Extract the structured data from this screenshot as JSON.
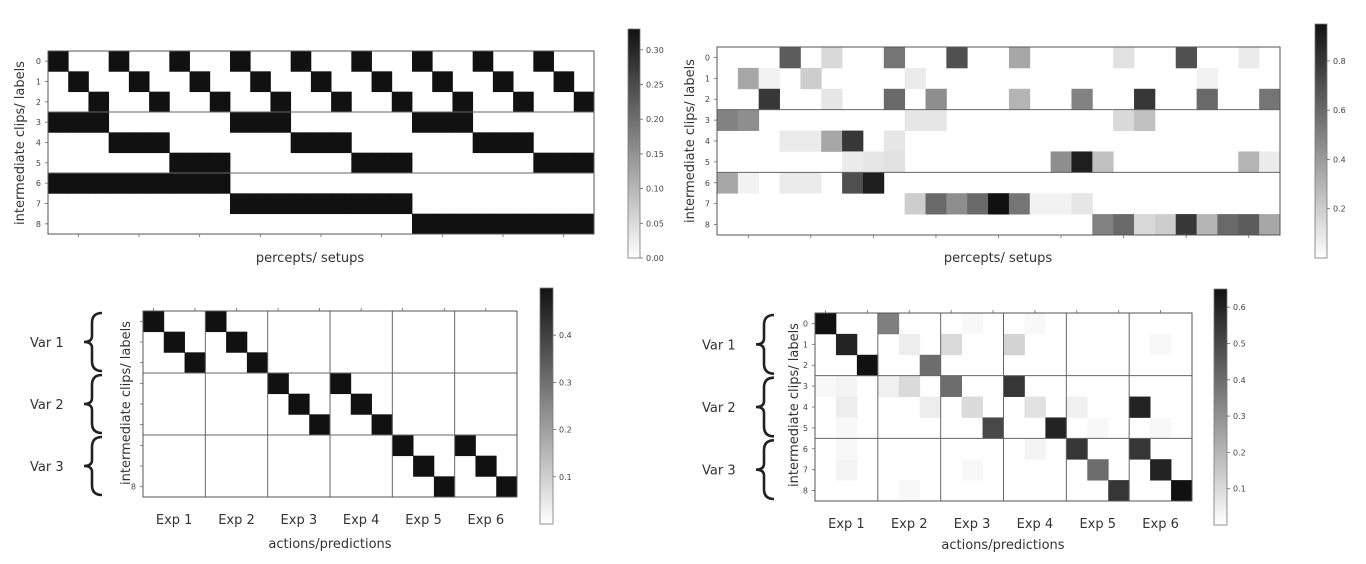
{
  "colors": {
    "dark": "#111111",
    "light": "#ffffff",
    "frame": "#555555",
    "sep": "#666666"
  },
  "chart_data": [
    {
      "id": "top-left",
      "type": "heatmap",
      "title": "",
      "xlabel": "percepts/ setups",
      "ylabel": "intermediate clips/ labels",
      "rows": 9,
      "cols": 27,
      "yticks": [
        "0",
        "1",
        "2",
        "3",
        "4",
        "5",
        "6",
        "7",
        "8"
      ],
      "vmax": 0.33,
      "colorbar": {
        "min": 0.0,
        "max": 0.33,
        "ticks": [
          0.0,
          0.05,
          0.1,
          0.15,
          0.2,
          0.25,
          0.3
        ],
        "labels": [
          "0.00",
          "0.05",
          "0.10",
          "0.15",
          "0.20",
          "0.25",
          "0.30"
        ]
      },
      "row_separators": [
        3,
        6
      ],
      "col_separators": [],
      "values": [
        [
          0.333,
          0,
          0,
          0.333,
          0,
          0,
          0.333,
          0,
          0,
          0.333,
          0,
          0,
          0.333,
          0,
          0,
          0.333,
          0,
          0,
          0.333,
          0,
          0,
          0.333,
          0,
          0,
          0.333,
          0,
          0
        ],
        [
          0,
          0.333,
          0,
          0,
          0.333,
          0,
          0,
          0.333,
          0,
          0,
          0.333,
          0,
          0,
          0.333,
          0,
          0,
          0.333,
          0,
          0,
          0.333,
          0,
          0,
          0.333,
          0,
          0,
          0.333,
          0
        ],
        [
          0,
          0,
          0.333,
          0,
          0,
          0.333,
          0,
          0,
          0.333,
          0,
          0,
          0.333,
          0,
          0,
          0.333,
          0,
          0,
          0.333,
          0,
          0,
          0.333,
          0,
          0,
          0.333,
          0,
          0,
          0.333
        ],
        [
          0.333,
          0.333,
          0.333,
          0,
          0,
          0,
          0,
          0,
          0,
          0.333,
          0.333,
          0.333,
          0,
          0,
          0,
          0,
          0,
          0,
          0.333,
          0.333,
          0.333,
          0,
          0,
          0,
          0,
          0,
          0
        ],
        [
          0,
          0,
          0,
          0.333,
          0.333,
          0.333,
          0,
          0,
          0,
          0,
          0,
          0,
          0.333,
          0.333,
          0.333,
          0,
          0,
          0,
          0,
          0,
          0,
          0.333,
          0.333,
          0.333,
          0,
          0,
          0
        ],
        [
          0,
          0,
          0,
          0,
          0,
          0,
          0.333,
          0.333,
          0.333,
          0,
          0,
          0,
          0,
          0,
          0,
          0.333,
          0.333,
          0.333,
          0,
          0,
          0,
          0,
          0,
          0,
          0.333,
          0.333,
          0.333
        ],
        [
          0.333,
          0.333,
          0.333,
          0.333,
          0.333,
          0.333,
          0.333,
          0.333,
          0.333,
          0,
          0,
          0,
          0,
          0,
          0,
          0,
          0,
          0,
          0,
          0,
          0,
          0,
          0,
          0,
          0,
          0,
          0
        ],
        [
          0,
          0,
          0,
          0,
          0,
          0,
          0,
          0,
          0,
          0.333,
          0.333,
          0.333,
          0.333,
          0.333,
          0.333,
          0.333,
          0.333,
          0.333,
          0,
          0,
          0,
          0,
          0,
          0,
          0,
          0,
          0
        ],
        [
          0,
          0,
          0,
          0,
          0,
          0,
          0,
          0,
          0,
          0,
          0,
          0,
          0,
          0,
          0,
          0,
          0,
          0,
          0.333,
          0.333,
          0.333,
          0.333,
          0.333,
          0.333,
          0.333,
          0.333,
          0.333
        ]
      ]
    },
    {
      "id": "top-right",
      "type": "heatmap",
      "title": "",
      "xlabel": "percepts/ setups",
      "ylabel": "intermediate clips/ labels",
      "rows": 9,
      "cols": 27,
      "yticks": [
        "0",
        "1",
        "2",
        "3",
        "4",
        "5",
        "6",
        "7",
        "8"
      ],
      "vmax": 0.95,
      "colorbar": {
        "min": 0.0,
        "max": 0.95,
        "ticks": [
          0.2,
          0.4,
          0.6,
          0.8
        ],
        "labels": [
          "0.2",
          "0.4",
          "0.6",
          "0.8"
        ]
      },
      "row_separators": [
        3,
        6
      ],
      "col_separators": [],
      "values": [
        [
          0,
          0,
          0,
          0.65,
          0,
          0.15,
          0,
          0,
          0.55,
          0,
          0,
          0.7,
          0,
          0,
          0.35,
          0,
          0,
          0,
          0,
          0.12,
          0,
          0,
          0.7,
          0,
          0,
          0.08,
          0
        ],
        [
          0,
          0.35,
          0.05,
          0,
          0.2,
          0,
          0,
          0,
          0,
          0.08,
          0,
          0,
          0,
          0,
          0,
          0,
          0,
          0,
          0,
          0,
          0,
          0,
          0,
          0.05,
          0,
          0,
          0
        ],
        [
          0,
          0,
          0.8,
          0,
          0,
          0.1,
          0,
          0,
          0.6,
          0,
          0.45,
          0,
          0,
          0,
          0.3,
          0,
          0,
          0.5,
          0,
          0,
          0.8,
          0,
          0,
          0.6,
          0,
          0,
          0.55
        ],
        [
          0.5,
          0.45,
          0,
          0,
          0,
          0,
          0,
          0,
          0,
          0.1,
          0.1,
          0,
          0,
          0,
          0,
          0,
          0,
          0,
          0,
          0.15,
          0.25,
          0,
          0,
          0,
          0,
          0,
          0
        ],
        [
          0,
          0,
          0,
          0.08,
          0.08,
          0.35,
          0.8,
          0,
          0.1,
          0,
          0,
          0,
          0,
          0,
          0,
          0,
          0,
          0,
          0,
          0,
          0,
          0,
          0,
          0,
          0,
          0,
          0
        ],
        [
          0,
          0,
          0,
          0,
          0,
          0,
          0.08,
          0.1,
          0.12,
          0,
          0,
          0,
          0,
          0,
          0,
          0,
          0.45,
          0.9,
          0.25,
          0,
          0,
          0,
          0,
          0,
          0,
          0.3,
          0.08
        ],
        [
          0.35,
          0.05,
          0,
          0.08,
          0.08,
          0,
          0.7,
          0.9,
          0,
          0,
          0,
          0,
          0,
          0,
          0,
          0,
          0,
          0,
          0,
          0,
          0,
          0,
          0,
          0,
          0,
          0,
          0
        ],
        [
          0,
          0,
          0,
          0,
          0,
          0,
          0,
          0,
          0,
          0.2,
          0.6,
          0.45,
          0.6,
          0.95,
          0.55,
          0.05,
          0.05,
          0.1,
          0,
          0,
          0,
          0,
          0,
          0,
          0,
          0,
          0
        ],
        [
          0,
          0,
          0,
          0,
          0,
          0,
          0,
          0,
          0,
          0,
          0,
          0,
          0,
          0,
          0,
          0,
          0,
          0,
          0.5,
          0.6,
          0.15,
          0.2,
          0.8,
          0.3,
          0.6,
          0.65,
          0.35
        ]
      ]
    },
    {
      "id": "bottom-left",
      "type": "heatmap",
      "title": "",
      "xlabel": "actions/predictions",
      "ylabel": "intermediate clips/ labels",
      "rows": 9,
      "cols": 18,
      "yticks": [
        "",
        "",
        "",
        "",
        "",
        "",
        "",
        "",
        "8"
      ],
      "xticks": [
        "Exp 1",
        "Exp 2",
        "Exp 3",
        "Exp 4",
        "Exp 5",
        "Exp 6"
      ],
      "group_labels": [
        "Var 1",
        "Var 2",
        "Var 3"
      ],
      "vmax": 0.5,
      "colorbar": {
        "min": 0.0,
        "max": 0.5,
        "ticks": [
          0.1,
          0.2,
          0.3,
          0.4
        ],
        "labels": [
          "0.1",
          "0.2",
          "0.3",
          "0.4"
        ]
      },
      "row_separators": [
        3,
        6
      ],
      "col_separators": [
        3,
        6,
        9,
        12,
        15
      ],
      "values": [
        [
          0.5,
          0,
          0,
          0.5,
          0,
          0,
          0,
          0,
          0,
          0,
          0,
          0,
          0,
          0,
          0,
          0,
          0,
          0
        ],
        [
          0,
          0.5,
          0,
          0,
          0.5,
          0,
          0,
          0,
          0,
          0,
          0,
          0,
          0,
          0,
          0,
          0,
          0,
          0
        ],
        [
          0,
          0,
          0.5,
          0,
          0,
          0.5,
          0,
          0,
          0,
          0,
          0,
          0,
          0,
          0,
          0,
          0,
          0,
          0
        ],
        [
          0,
          0,
          0,
          0,
          0,
          0,
          0.5,
          0,
          0,
          0.5,
          0,
          0,
          0,
          0,
          0,
          0,
          0,
          0
        ],
        [
          0,
          0,
          0,
          0,
          0,
          0,
          0,
          0.5,
          0,
          0,
          0.5,
          0,
          0,
          0,
          0,
          0,
          0,
          0
        ],
        [
          0,
          0,
          0,
          0,
          0,
          0,
          0,
          0,
          0.5,
          0,
          0,
          0.5,
          0,
          0,
          0,
          0,
          0,
          0
        ],
        [
          0,
          0,
          0,
          0,
          0,
          0,
          0,
          0,
          0,
          0,
          0,
          0,
          0.5,
          0,
          0,
          0.5,
          0,
          0
        ],
        [
          0,
          0,
          0,
          0,
          0,
          0,
          0,
          0,
          0,
          0,
          0,
          0,
          0,
          0.5,
          0,
          0,
          0.5,
          0
        ],
        [
          0,
          0,
          0,
          0,
          0,
          0,
          0,
          0,
          0,
          0,
          0,
          0,
          0,
          0,
          0.5,
          0,
          0,
          0.5
        ]
      ]
    },
    {
      "id": "bottom-right",
      "type": "heatmap",
      "title": "",
      "xlabel": "actions/predictions",
      "ylabel": "intermediate clips/ labels",
      "rows": 9,
      "cols": 18,
      "yticks": [
        "0",
        "1",
        "2",
        "3",
        "4",
        "5",
        "6",
        "7",
        "8"
      ],
      "xticks": [
        "Exp 1",
        "Exp 2",
        "Exp 3",
        "Exp 4",
        "Exp 5",
        "Exp 6"
      ],
      "group_labels": [
        "Var 1",
        "Var 2",
        "Var 3"
      ],
      "vmax": 0.65,
      "colorbar": {
        "min": 0.0,
        "max": 0.65,
        "ticks": [
          0.1,
          0.2,
          0.3,
          0.4,
          0.5,
          0.6
        ],
        "labels": [
          "0.1",
          "0.2",
          "0.3",
          "0.4",
          "0.5",
          "0.6"
        ]
      },
      "row_separators": [
        3,
        6
      ],
      "col_separators": [
        3,
        6,
        9,
        12,
        15
      ],
      "values": [
        [
          0.65,
          0,
          0,
          0.35,
          0,
          0,
          0,
          0.02,
          0,
          0,
          0.02,
          0,
          0,
          0,
          0,
          0,
          0,
          0
        ],
        [
          0,
          0.6,
          0,
          0,
          0.05,
          0,
          0.1,
          0,
          0,
          0.12,
          0,
          0,
          0,
          0,
          0,
          0,
          0.02,
          0
        ],
        [
          0,
          0,
          0.65,
          0,
          0,
          0.4,
          0,
          0,
          0,
          0,
          0,
          0,
          0,
          0,
          0,
          0,
          0,
          0
        ],
        [
          0.02,
          0.03,
          0,
          0.04,
          0.1,
          0,
          0.4,
          0,
          0,
          0.55,
          0,
          0,
          0,
          0,
          0,
          0,
          0,
          0
        ],
        [
          0,
          0.05,
          0,
          0,
          0,
          0.05,
          0,
          0.1,
          0,
          0,
          0.08,
          0,
          0.04,
          0,
          0,
          0.6,
          0,
          0
        ],
        [
          0,
          0.02,
          0,
          0,
          0,
          0,
          0,
          0,
          0.5,
          0,
          0,
          0.6,
          0,
          0.02,
          0,
          0,
          0.02,
          0
        ],
        [
          0,
          0.02,
          0,
          0,
          0,
          0,
          0,
          0,
          0,
          0,
          0.03,
          0,
          0.55,
          0,
          0,
          0.55,
          0,
          0
        ],
        [
          0,
          0.03,
          0,
          0,
          0,
          0,
          0,
          0.02,
          0,
          0,
          0,
          0,
          0,
          0.4,
          0,
          0,
          0.6,
          0
        ],
        [
          0,
          0,
          0,
          0,
          0.02,
          0,
          0,
          0,
          0,
          0,
          0,
          0,
          0,
          0,
          0.55,
          0,
          0,
          0.65
        ]
      ]
    }
  ]
}
